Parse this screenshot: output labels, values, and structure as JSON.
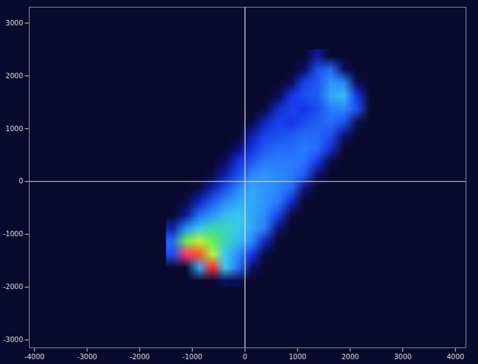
{
  "chart_data": {
    "type": "heatmap",
    "xlim": [
      -4100,
      4200
    ],
    "ylim": [
      -3150,
      3300
    ],
    "xticks": [
      -4000,
      -3000,
      -2000,
      -1000,
      0,
      1000,
      2000,
      3000,
      4000
    ],
    "yticks": [
      -3000,
      -2000,
      -1000,
      0,
      1000,
      2000,
      3000
    ],
    "crosshair": {
      "x": 0,
      "y": 0
    },
    "zlim": [
      0,
      100
    ],
    "x_range": [
      -1500,
      2500
    ],
    "y_range": [
      2500,
      -2000
    ],
    "values": [
      [
        0,
        0,
        0,
        0,
        0,
        0,
        0,
        0,
        0,
        0,
        0,
        15,
        0,
        0,
        0,
        0
      ],
      [
        0,
        0,
        0,
        0,
        0,
        0,
        0,
        0,
        0,
        0,
        8,
        30,
        35,
        8,
        0,
        0
      ],
      [
        0,
        0,
        0,
        0,
        0,
        0,
        0,
        0,
        0,
        5,
        28,
        32,
        42,
        40,
        5,
        0
      ],
      [
        0,
        0,
        0,
        0,
        0,
        0,
        0,
        0,
        5,
        25,
        30,
        32,
        45,
        48,
        25,
        0
      ],
      [
        0,
        0,
        0,
        0,
        0,
        0,
        0,
        3,
        22,
        28,
        25,
        30,
        38,
        40,
        30,
        0
      ],
      [
        0,
        0,
        0,
        0,
        0,
        0,
        3,
        20,
        28,
        25,
        30,
        33,
        35,
        30,
        5,
        0
      ],
      [
        0,
        0,
        0,
        0,
        0,
        0,
        18,
        28,
        30,
        32,
        35,
        35,
        30,
        12,
        0,
        0
      ],
      [
        0,
        0,
        0,
        0,
        0,
        10,
        25,
        32,
        35,
        35,
        38,
        35,
        22,
        0,
        0,
        0
      ],
      [
        0,
        0,
        0,
        0,
        8,
        25,
        32,
        38,
        38,
        38,
        36,
        25,
        3,
        0,
        0,
        0
      ],
      [
        0,
        0,
        0,
        3,
        18,
        30,
        40,
        42,
        40,
        38,
        32,
        8,
        0,
        0,
        0,
        0
      ],
      [
        0,
        0,
        3,
        18,
        30,
        40,
        45,
        42,
        40,
        35,
        12,
        0,
        0,
        0,
        0,
        0
      ],
      [
        0,
        3,
        20,
        32,
        40,
        45,
        45,
        42,
        38,
        22,
        0,
        0,
        0,
        0,
        0,
        0
      ],
      [
        0,
        15,
        35,
        42,
        48,
        50,
        45,
        40,
        28,
        3,
        0,
        0,
        0,
        0,
        0,
        0
      ],
      [
        18,
        40,
        50,
        55,
        55,
        50,
        45,
        38,
        12,
        0,
        0,
        0,
        0,
        0,
        0,
        0
      ],
      [
        35,
        65,
        70,
        65,
        55,
        48,
        40,
        20,
        0,
        0,
        0,
        0,
        0,
        0,
        0,
        0
      ],
      [
        30,
        92,
        85,
        70,
        50,
        40,
        25,
        3,
        0,
        0,
        0,
        0,
        0,
        0,
        0,
        0
      ],
      [
        0,
        0,
        45,
        88,
        50,
        35,
        8,
        0,
        0,
        0,
        0,
        0,
        0,
        0,
        0,
        0
      ],
      [
        0,
        0,
        0,
        0,
        8,
        5,
        0,
        0,
        0,
        0,
        0,
        0,
        0,
        0,
        0,
        0
      ]
    ]
  }
}
